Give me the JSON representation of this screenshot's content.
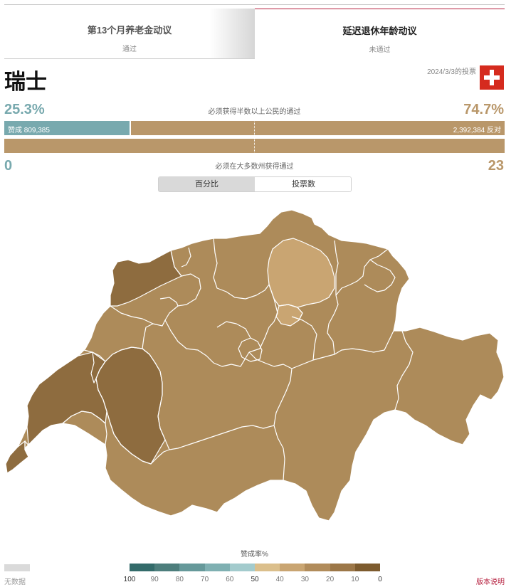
{
  "tabs": [
    {
      "title": "第13个月养老金动议",
      "status": "通过"
    },
    {
      "title": "延迟退休年龄动议",
      "status": "未通过"
    }
  ],
  "country": "瑞士",
  "vote_date": "2024/3/3的投票",
  "popular_vote": {
    "yes_percent": 25.3,
    "no_percent": 74.7,
    "yes_percent_label": "25.3%",
    "no_percent_label": "74.7%",
    "requirement": "必须获得半数以上公民的通过",
    "yes_label": "赞成 809,385",
    "no_label": "2,392,384 反对"
  },
  "cantons_vote": {
    "yes_count": "0",
    "no_count": "23",
    "requirement": "必须在大多数州获得通过"
  },
  "view_toggle": {
    "percent": "百分比",
    "votes": "投票数"
  },
  "legend": {
    "title": "赞成率%",
    "no_data": "无数据",
    "ticks": [
      "100",
      "90",
      "80",
      "70",
      "60",
      "50",
      "40",
      "30",
      "20",
      "10",
      "0"
    ],
    "colors": [
      "#336b6a",
      "#4d7e7c",
      "#66999a",
      "#7fb0b2",
      "#a3cbcd",
      "#dbbf8c",
      "#c9a572",
      "#b18c5b",
      "#9c7748",
      "#7d5b2e"
    ]
  },
  "map_colors": {
    "light": "#c9a572",
    "mid": "#ad8b5a",
    "dark": "#8e6c3f",
    "border": "#ffffff"
  },
  "flag_colors": {
    "red": "#d52b1e",
    "cross": "#ffffff"
  },
  "notes_link": "版本说明"
}
